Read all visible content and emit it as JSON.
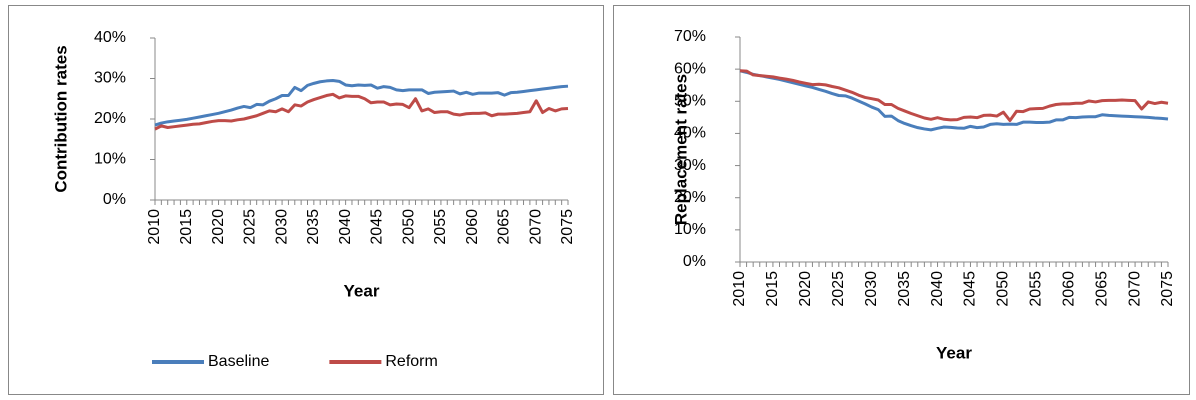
{
  "chart_data": [
    {
      "type": "line",
      "ylabel": "Contribution rates",
      "xlabel": "Year",
      "x": [
        2010,
        2011,
        2012,
        2013,
        2014,
        2015,
        2016,
        2017,
        2018,
        2019,
        2020,
        2021,
        2022,
        2023,
        2024,
        2025,
        2026,
        2027,
        2028,
        2029,
        2030,
        2031,
        2032,
        2033,
        2034,
        2035,
        2036,
        2037,
        2038,
        2039,
        2040,
        2041,
        2042,
        2043,
        2044,
        2045,
        2046,
        2047,
        2048,
        2049,
        2050,
        2051,
        2052,
        2053,
        2054,
        2055,
        2056,
        2057,
        2058,
        2059,
        2060,
        2061,
        2062,
        2063,
        2064,
        2065,
        2066,
        2067,
        2068,
        2069,
        2070,
        2071,
        2072,
        2073,
        2074,
        2075
      ],
      "xlim": [
        2010,
        2075
      ],
      "xticks": [
        2010,
        2015,
        2020,
        2025,
        2030,
        2035,
        2040,
        2045,
        2050,
        2055,
        2060,
        2065,
        2070,
        2075
      ],
      "ylim": [
        0,
        40
      ],
      "yticks": [
        {
          "value": 0,
          "label": "0%"
        },
        {
          "value": 10,
          "label": "10%"
        },
        {
          "value": 20,
          "label": "20%"
        },
        {
          "value": 30,
          "label": "30%"
        },
        {
          "value": 40,
          "label": "40%"
        }
      ],
      "legend": "bottom",
      "series": [
        {
          "name": "Baseline",
          "color": "#4a7ebb",
          "values": [
            18.5,
            19,
            19.3,
            19.5,
            19.7,
            19.9,
            20.2,
            20.5,
            20.8,
            21.1,
            21.4,
            21.8,
            22.2,
            22.7,
            23.1,
            22.8,
            23.6,
            23.5,
            24.4,
            25,
            25.8,
            25.8,
            27.8,
            27,
            28.3,
            28.8,
            29.2,
            29.4,
            29.5,
            29.3,
            28.4,
            28.2,
            28.4,
            28.3,
            28.4,
            27.6,
            28,
            27.8,
            27.2,
            27,
            27.2,
            27.2,
            27.2,
            26.3,
            26.6,
            26.7,
            26.8,
            26.9,
            26.2,
            26.6,
            26.1,
            26.4,
            26.4,
            26.4,
            26.5,
            25.9,
            26.5,
            26.6,
            26.8,
            27,
            27.2,
            27.4,
            27.6,
            27.8,
            28,
            28.1
          ]
        },
        {
          "name": "Reform",
          "color": "#be4b48",
          "values": [
            17.5,
            18.3,
            17.9,
            18.1,
            18.3,
            18.5,
            18.7,
            18.8,
            19.1,
            19.4,
            19.6,
            19.6,
            19.5,
            19.8,
            20,
            20.4,
            20.8,
            21.4,
            22,
            21.8,
            22.5,
            21.8,
            23.5,
            23.2,
            24.2,
            24.8,
            25.3,
            25.8,
            26.1,
            25.2,
            25.7,
            25.6,
            25.6,
            25,
            24,
            24.2,
            24.2,
            23.5,
            23.7,
            23.6,
            22.8,
            25,
            22,
            22.5,
            21.6,
            21.8,
            21.8,
            21.2,
            21,
            21.3,
            21.4,
            21.4,
            21.5,
            20.8,
            21.2,
            21.2,
            21.3,
            21.4,
            21.6,
            21.8,
            24.5,
            21.6,
            22.6,
            22,
            22.5,
            22.6
          ]
        }
      ]
    },
    {
      "type": "line",
      "ylabel": "Replacement rates",
      "xlabel": "Year",
      "x": [
        2010,
        2011,
        2012,
        2013,
        2014,
        2015,
        2016,
        2017,
        2018,
        2019,
        2020,
        2021,
        2022,
        2023,
        2024,
        2025,
        2026,
        2027,
        2028,
        2029,
        2030,
        2031,
        2032,
        2033,
        2034,
        2035,
        2036,
        2037,
        2038,
        2039,
        2040,
        2041,
        2042,
        2043,
        2044,
        2045,
        2046,
        2047,
        2048,
        2049,
        2050,
        2051,
        2052,
        2053,
        2054,
        2055,
        2056,
        2057,
        2058,
        2059,
        2060,
        2061,
        2062,
        2063,
        2064,
        2065,
        2066,
        2067,
        2068,
        2069,
        2070,
        2071,
        2072,
        2073,
        2074,
        2075
      ],
      "xlim": [
        2010,
        2075
      ],
      "xticks": [
        2010,
        2015,
        2020,
        2025,
        2030,
        2035,
        2040,
        2045,
        2050,
        2055,
        2060,
        2065,
        2070,
        2075
      ],
      "ylim": [
        0,
        70
      ],
      "yticks": [
        {
          "value": 0,
          "label": "0%"
        },
        {
          "value": 10,
          "label": "10%"
        },
        {
          "value": 20,
          "label": "20%"
        },
        {
          "value": 30,
          "label": "30%"
        },
        {
          "value": 40,
          "label": "40%"
        },
        {
          "value": 50,
          "label": "50%"
        },
        {
          "value": 60,
          "label": "60%"
        },
        {
          "value": 70,
          "label": "70%"
        }
      ],
      "series": [
        {
          "color": "#4a7ebb",
          "values": [
            59.5,
            59,
            58.4,
            58,
            57.6,
            57.2,
            56.8,
            56.3,
            55.8,
            55.3,
            54.8,
            54.3,
            53.7,
            53.1,
            52.4,
            51.8,
            51.7,
            51,
            50.1,
            49.2,
            48.2,
            47.4,
            45.3,
            45.4,
            44,
            43.1,
            42.4,
            41.8,
            41.4,
            41.1,
            41.6,
            42,
            41.9,
            41.7,
            41.6,
            42.2,
            41.8,
            42,
            42.8,
            43,
            42.8,
            42.9,
            42.8,
            43.5,
            43.5,
            43.4,
            43.4,
            43.5,
            44.2,
            44.2,
            45,
            44.9,
            45.1,
            45.2,
            45.2,
            45.8,
            45.6,
            45.5,
            45.4,
            45.3,
            45.2,
            45.1,
            45,
            44.8,
            44.7,
            44.5
          ]
        },
        {
          "color": "#be4b48",
          "values": [
            59.5,
            59.4,
            58.2,
            58,
            57.8,
            57.6,
            57.2,
            56.9,
            56.5,
            56,
            55.6,
            55.2,
            55.3,
            55.1,
            54.6,
            54.2,
            53.5,
            52.8,
            51.9,
            51.2,
            50.8,
            50.4,
            49,
            49,
            47.8,
            47,
            46.2,
            45.5,
            44.8,
            44.4,
            44.9,
            44.4,
            44.2,
            44.3,
            45,
            45.1,
            44.9,
            45.6,
            45.7,
            45.4,
            46.6,
            44,
            46.9,
            46.8,
            47.6,
            47.7,
            47.8,
            48.5,
            49,
            49.2,
            49.2,
            49.4,
            49.4,
            50.1,
            49.8,
            50.2,
            50.3,
            50.3,
            50.4,
            50.3,
            50.2,
            47.6,
            49.8,
            49.3,
            49.7,
            49.4
          ]
        }
      ]
    }
  ]
}
